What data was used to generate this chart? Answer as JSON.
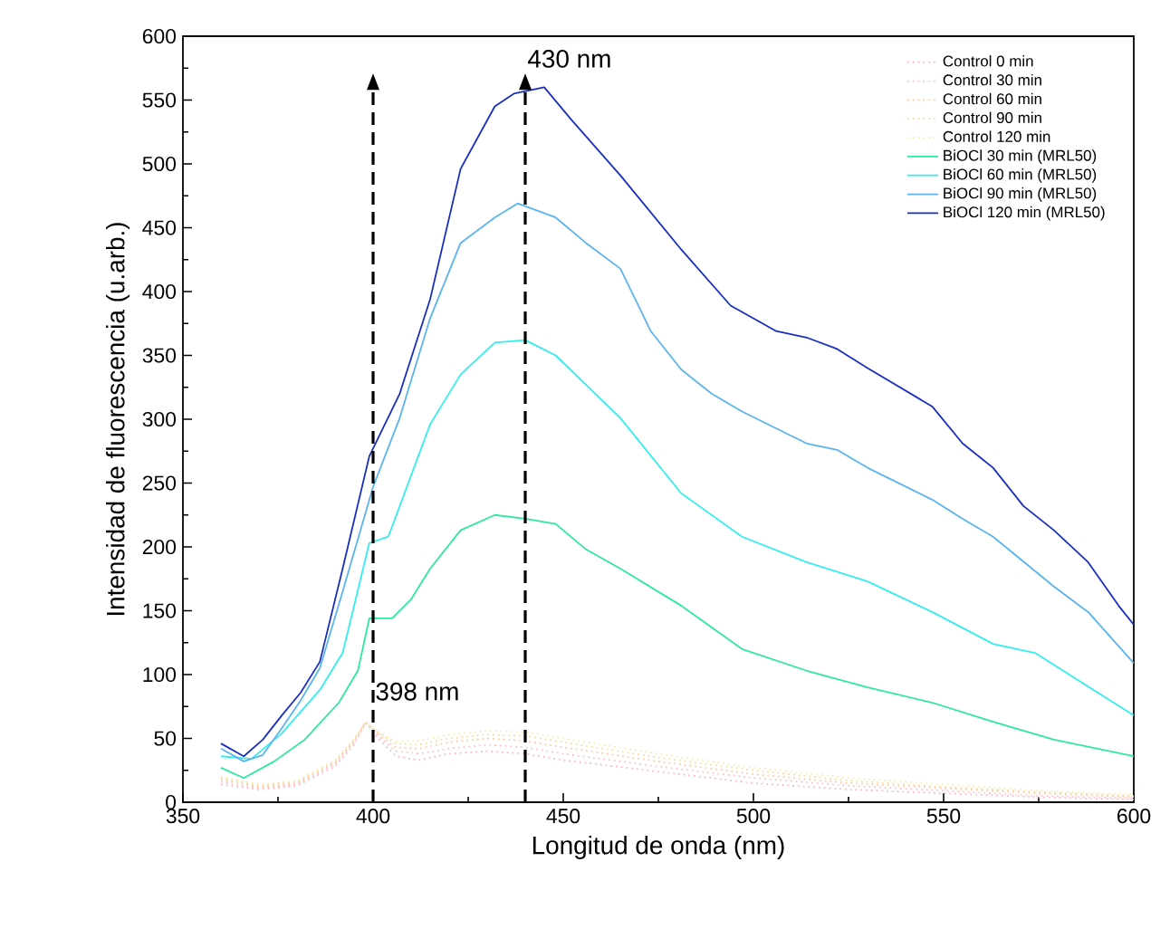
{
  "chart_data": {
    "type": "line",
    "xlabel": "Longitud de onda (nm)",
    "ylabel": "Intensidad de fluorescencia (u.arb.)",
    "xlim": [
      350,
      600
    ],
    "ylim": [
      0,
      600
    ],
    "xticks": [
      350,
      400,
      450,
      500,
      550,
      600
    ],
    "yticks": [
      0,
      50,
      100,
      150,
      200,
      250,
      300,
      350,
      400,
      450,
      500,
      550,
      600
    ],
    "grid": false,
    "legend": "top right",
    "marker": "none",
    "ref_lines": [
      {
        "axis": "x",
        "value": 400,
        "label": "398 nm",
        "line_style": "dashed",
        "color": "#000000"
      },
      {
        "axis": "x",
        "value": 440,
        "label": "430 nm",
        "line_style": "dashed",
        "color": "#000000"
      }
    ],
    "series": [
      {
        "name": "Control 0 min",
        "color": "#ffb6c1",
        "line_style": "dotted",
        "x": [
          360,
          370,
          380,
          390,
          395,
          398,
          402,
          406,
          412,
          420,
          430,
          440,
          450,
          475,
          500,
          525,
          550,
          575,
          600
        ],
        "values": [
          14,
          10,
          13,
          28,
          45,
          62,
          48,
          36,
          33,
          38,
          40,
          38,
          33,
          24,
          15,
          10,
          7,
          4,
          2
        ]
      },
      {
        "name": "Control 30 min",
        "color": "#ffc0c8",
        "line_style": "dotted",
        "x": [
          360,
          370,
          380,
          390,
          395,
          398,
          402,
          406,
          412,
          420,
          430,
          440,
          450,
          475,
          500,
          525,
          550,
          575,
          600
        ],
        "values": [
          16,
          11,
          14,
          30,
          47,
          63,
          50,
          40,
          38,
          42,
          45,
          43,
          38,
          28,
          19,
          13,
          9,
          5,
          3
        ]
      },
      {
        "name": "Control 60 min",
        "color": "#ffc8a8",
        "line_style": "dotted",
        "x": [
          360,
          370,
          380,
          390,
          395,
          398,
          402,
          406,
          412,
          420,
          430,
          440,
          450,
          475,
          500,
          525,
          550,
          575,
          600
        ],
        "values": [
          18,
          12,
          15,
          31,
          48,
          63,
          52,
          43,
          42,
          47,
          50,
          48,
          43,
          32,
          22,
          15,
          11,
          7,
          4
        ]
      },
      {
        "name": "Control 90 min",
        "color": "#f5dca0",
        "line_style": "dotted",
        "x": [
          360,
          370,
          380,
          390,
          395,
          398,
          402,
          406,
          412,
          420,
          430,
          440,
          450,
          475,
          500,
          525,
          550,
          575,
          600
        ],
        "values": [
          19,
          13,
          16,
          32,
          49,
          62,
          53,
          46,
          45,
          50,
          53,
          52,
          47,
          35,
          25,
          17,
          12,
          8,
          5
        ]
      },
      {
        "name": "Control 120 min",
        "color": "#f5ecb4",
        "line_style": "dotted",
        "x": [
          360,
          370,
          380,
          390,
          395,
          398,
          402,
          406,
          412,
          420,
          430,
          440,
          450,
          475,
          500,
          525,
          550,
          575,
          600
        ],
        "values": [
          20,
          14,
          17,
          33,
          50,
          62,
          54,
          48,
          48,
          53,
          56,
          55,
          50,
          38,
          27,
          19,
          14,
          9,
          6
        ]
      },
      {
        "name": "BiOCl 30 min (MRL50)",
        "color": "#2ee8a0",
        "line_style": "solid",
        "x": [
          360,
          366,
          374,
          382,
          391,
          396,
          399,
          405,
          410,
          415,
          423,
          432,
          440,
          448,
          456,
          465,
          481,
          497,
          514,
          530,
          547,
          563,
          579,
          600
        ],
        "values": [
          27,
          19,
          32,
          49,
          78,
          103,
          144,
          144,
          159,
          183,
          213,
          225,
          222,
          218,
          198,
          183,
          154,
          120,
          103,
          90,
          78,
          63,
          49,
          36
        ]
      },
      {
        "name": "BiOCl 60 min (MRL50)",
        "color": "#33eef0",
        "line_style": "solid",
        "x": [
          360,
          368,
          376,
          386,
          392,
          399,
          404,
          415,
          423,
          432,
          440,
          448,
          465,
          481,
          497,
          514,
          530,
          547,
          563,
          574,
          600
        ],
        "values": [
          36,
          34,
          54,
          88,
          117,
          203,
          208,
          296,
          335,
          360,
          362,
          350,
          301,
          242,
          208,
          188,
          173,
          149,
          124,
          117,
          68
        ]
      },
      {
        "name": "BiOCl 90 min (MRL50)",
        "color": "#5ab4f0",
        "line_style": "solid",
        "x": [
          360,
          366,
          371,
          376,
          381,
          386,
          392,
          400,
          407,
          415,
          423,
          432,
          438,
          448,
          456,
          465,
          473,
          481,
          489,
          497,
          514,
          522,
          530,
          547,
          555,
          563,
          579,
          588,
          600
        ],
        "values": [
          42,
          32,
          37,
          58,
          80,
          105,
          165,
          247,
          301,
          379,
          438,
          458,
          469,
          458,
          438,
          418,
          369,
          339,
          320,
          306,
          281,
          276,
          262,
          237,
          222,
          208,
          169,
          149,
          109
        ]
      },
      {
        "name": "BiOCl 120 min (MRL50)",
        "color": "#1a2ec0",
        "line_style": "solid",
        "x": [
          360,
          366,
          371,
          376,
          381,
          386,
          392,
          399,
          407,
          415,
          423,
          432,
          437,
          445,
          452,
          465,
          473,
          481,
          494,
          506,
          514,
          522,
          530,
          547,
          555,
          563,
          571,
          579,
          588,
          596,
          600
        ],
        "values": [
          46,
          36,
          49,
          68,
          86,
          110,
          183,
          271,
          320,
          394,
          496,
          545,
          555,
          560,
          535,
          491,
          462,
          433,
          389,
          369,
          364,
          355,
          340,
          310,
          281,
          262,
          232,
          213,
          188,
          154,
          139
        ]
      }
    ]
  }
}
